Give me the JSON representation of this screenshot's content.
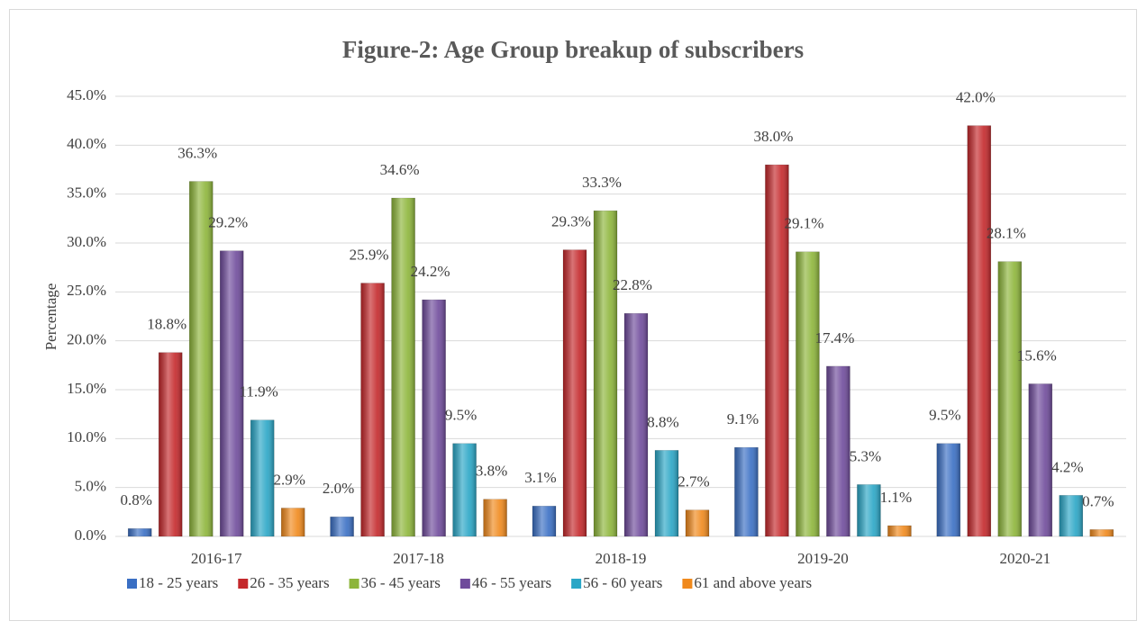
{
  "chart_data": {
    "type": "bar",
    "title": "Figure-2: Age Group breakup of subscribers",
    "y_label": "Percentage",
    "categories": [
      "2016-17",
      "2017-18",
      "2018-19",
      "2019-20",
      "2020-21"
    ],
    "series": [
      {
        "name": "18 - 25 years",
        "color": "#3a6fc4",
        "values": [
          0.8,
          2.0,
          3.1,
          9.1,
          9.5
        ],
        "value_labels": [
          "0.8%",
          "2.0%",
          "3.1%",
          "9.1%",
          "9.5%"
        ]
      },
      {
        "name": "26 - 35 years",
        "color": "#c4282b",
        "values": [
          18.8,
          25.9,
          29.3,
          38.0,
          42.0
        ],
        "value_labels": [
          "18.8%",
          "25.9%",
          "29.3%",
          "38.0%",
          "42.0%"
        ]
      },
      {
        "name": "36 - 45 years",
        "color": "#8db53a",
        "values": [
          36.3,
          34.6,
          33.3,
          29.1,
          28.1
        ],
        "value_labels": [
          "36.3%",
          "34.6%",
          "33.3%",
          "29.1%",
          "28.1%"
        ]
      },
      {
        "name": "46 - 55 years",
        "color": "#6f4b9b",
        "values": [
          29.2,
          24.2,
          22.8,
          17.4,
          15.6
        ],
        "value_labels": [
          "29.2%",
          "24.2%",
          "22.8%",
          "17.4%",
          "15.6%"
        ]
      },
      {
        "name": "56 - 60 years",
        "color": "#2aa6c6",
        "values": [
          11.9,
          9.5,
          8.8,
          5.3,
          4.2
        ],
        "value_labels": [
          "11.9%",
          "9.5%",
          "8.8%",
          "5.3%",
          "4.2%"
        ]
      },
      {
        "name": "61 and above years",
        "color": "#f0891c",
        "values": [
          2.9,
          3.8,
          2.7,
          1.1,
          0.7
        ],
        "value_labels": [
          "2.9%",
          "3.8%",
          "2.7%",
          "1.1%",
          "0.7%"
        ]
      }
    ],
    "ylim": [
      0,
      45
    ],
    "yticks": [
      {
        "value": 0,
        "label": "0.0%"
      },
      {
        "value": 5,
        "label": "5.0%"
      },
      {
        "value": 10,
        "label": "10.0%"
      },
      {
        "value": 15,
        "label": "15.0%"
      },
      {
        "value": 20,
        "label": "20.0%"
      },
      {
        "value": 25,
        "label": "25.0%"
      },
      {
        "value": 30,
        "label": "30.0%"
      },
      {
        "value": 35,
        "label": "35.0%"
      },
      {
        "value": 40,
        "label": "40.0%"
      },
      {
        "value": 45,
        "label": "45.0%"
      }
    ],
    "grid": true,
    "legend": "bottom"
  }
}
